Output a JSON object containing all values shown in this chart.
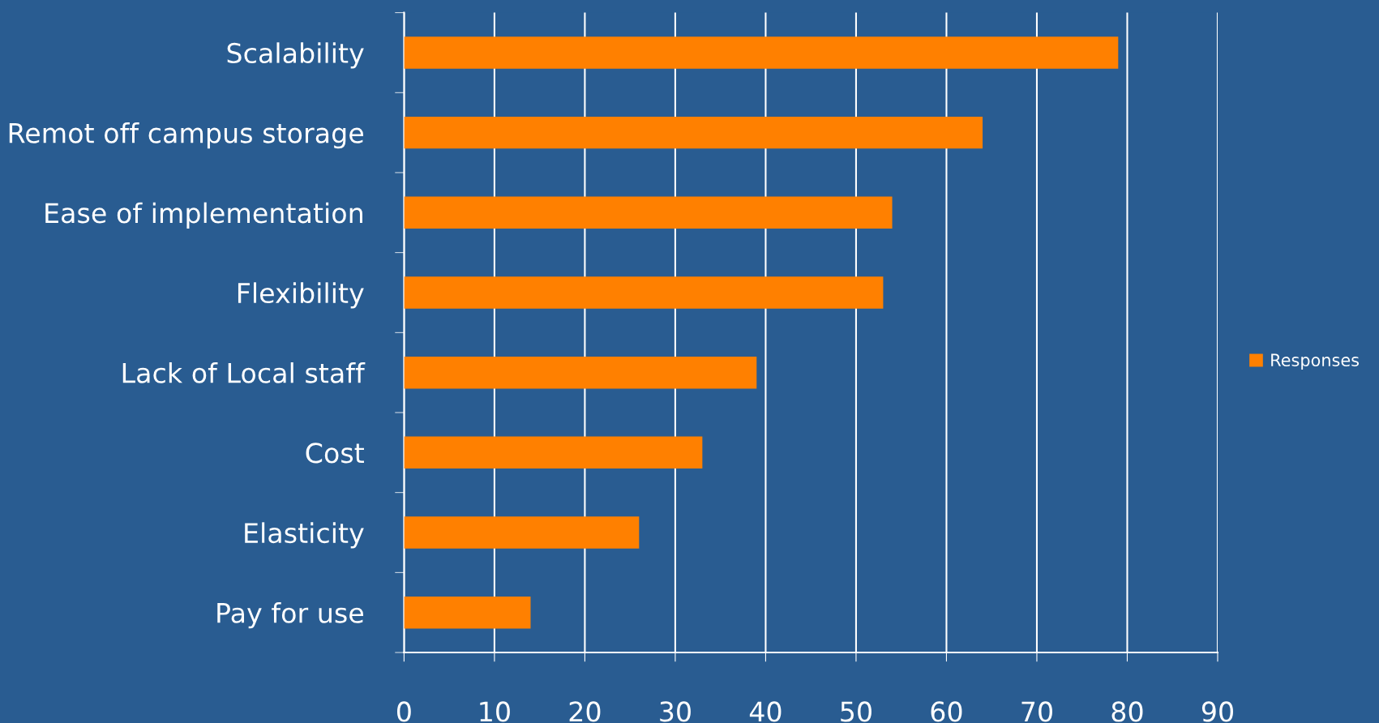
{
  "chart_data": {
    "type": "bar",
    "orientation": "horizontal",
    "categories": [
      "Scalability",
      "Remot off campus storage",
      "Ease of implementation",
      "Flexibility",
      "Lack of Local staff",
      "Cost",
      "Elasticity",
      "Pay for use"
    ],
    "series": [
      {
        "name": "Responses",
        "color": "#ff8000",
        "values": [
          79,
          64,
          54,
          53,
          39,
          33,
          26,
          14
        ]
      }
    ],
    "xlim": [
      0,
      90
    ],
    "xticks": [
      0,
      10,
      20,
      30,
      40,
      50,
      60,
      70,
      80,
      90
    ],
    "grid": "x",
    "legend": "right"
  }
}
